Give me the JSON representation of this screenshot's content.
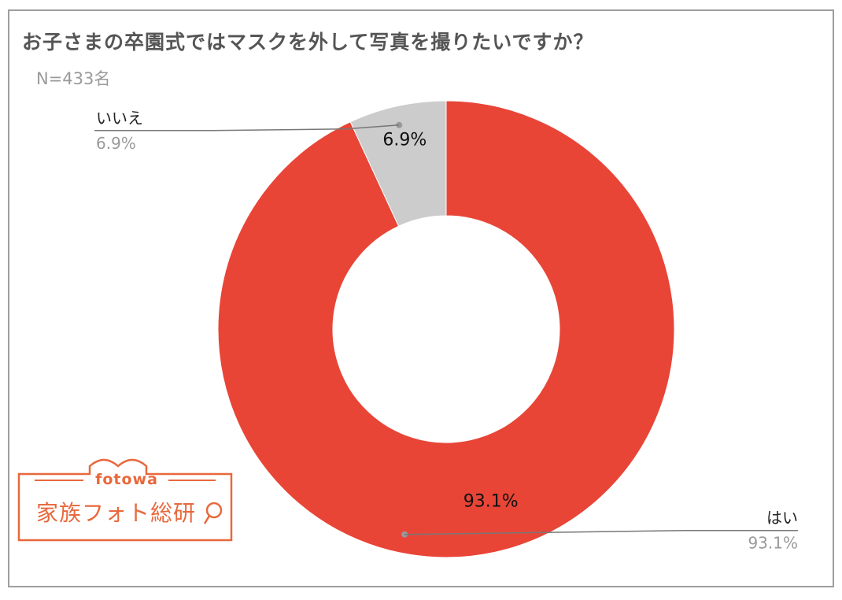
{
  "title": "お子さまの卒園式ではマスクを外して写真を撮りたいですか？",
  "subtitle": "N=433名",
  "colors": {
    "yes": "#e84537",
    "no": "#cccccc",
    "leader": "#777777",
    "logo": "#e8683c"
  },
  "chart_data": {
    "type": "pie",
    "donut": true,
    "title": "お子さまの卒園式ではマスクを外して写真を撮りたいですか？",
    "subtitle": "N=433名",
    "slices": [
      {
        "label": "いいえ",
        "value": 6.9,
        "display": "6.9%",
        "color": "#cccccc"
      },
      {
        "label": "はい",
        "value": 93.1,
        "display": "93.1%",
        "color": "#e84537"
      }
    ]
  },
  "logo": {
    "tagline": "fotowa",
    "name": "家族フォト総研"
  }
}
